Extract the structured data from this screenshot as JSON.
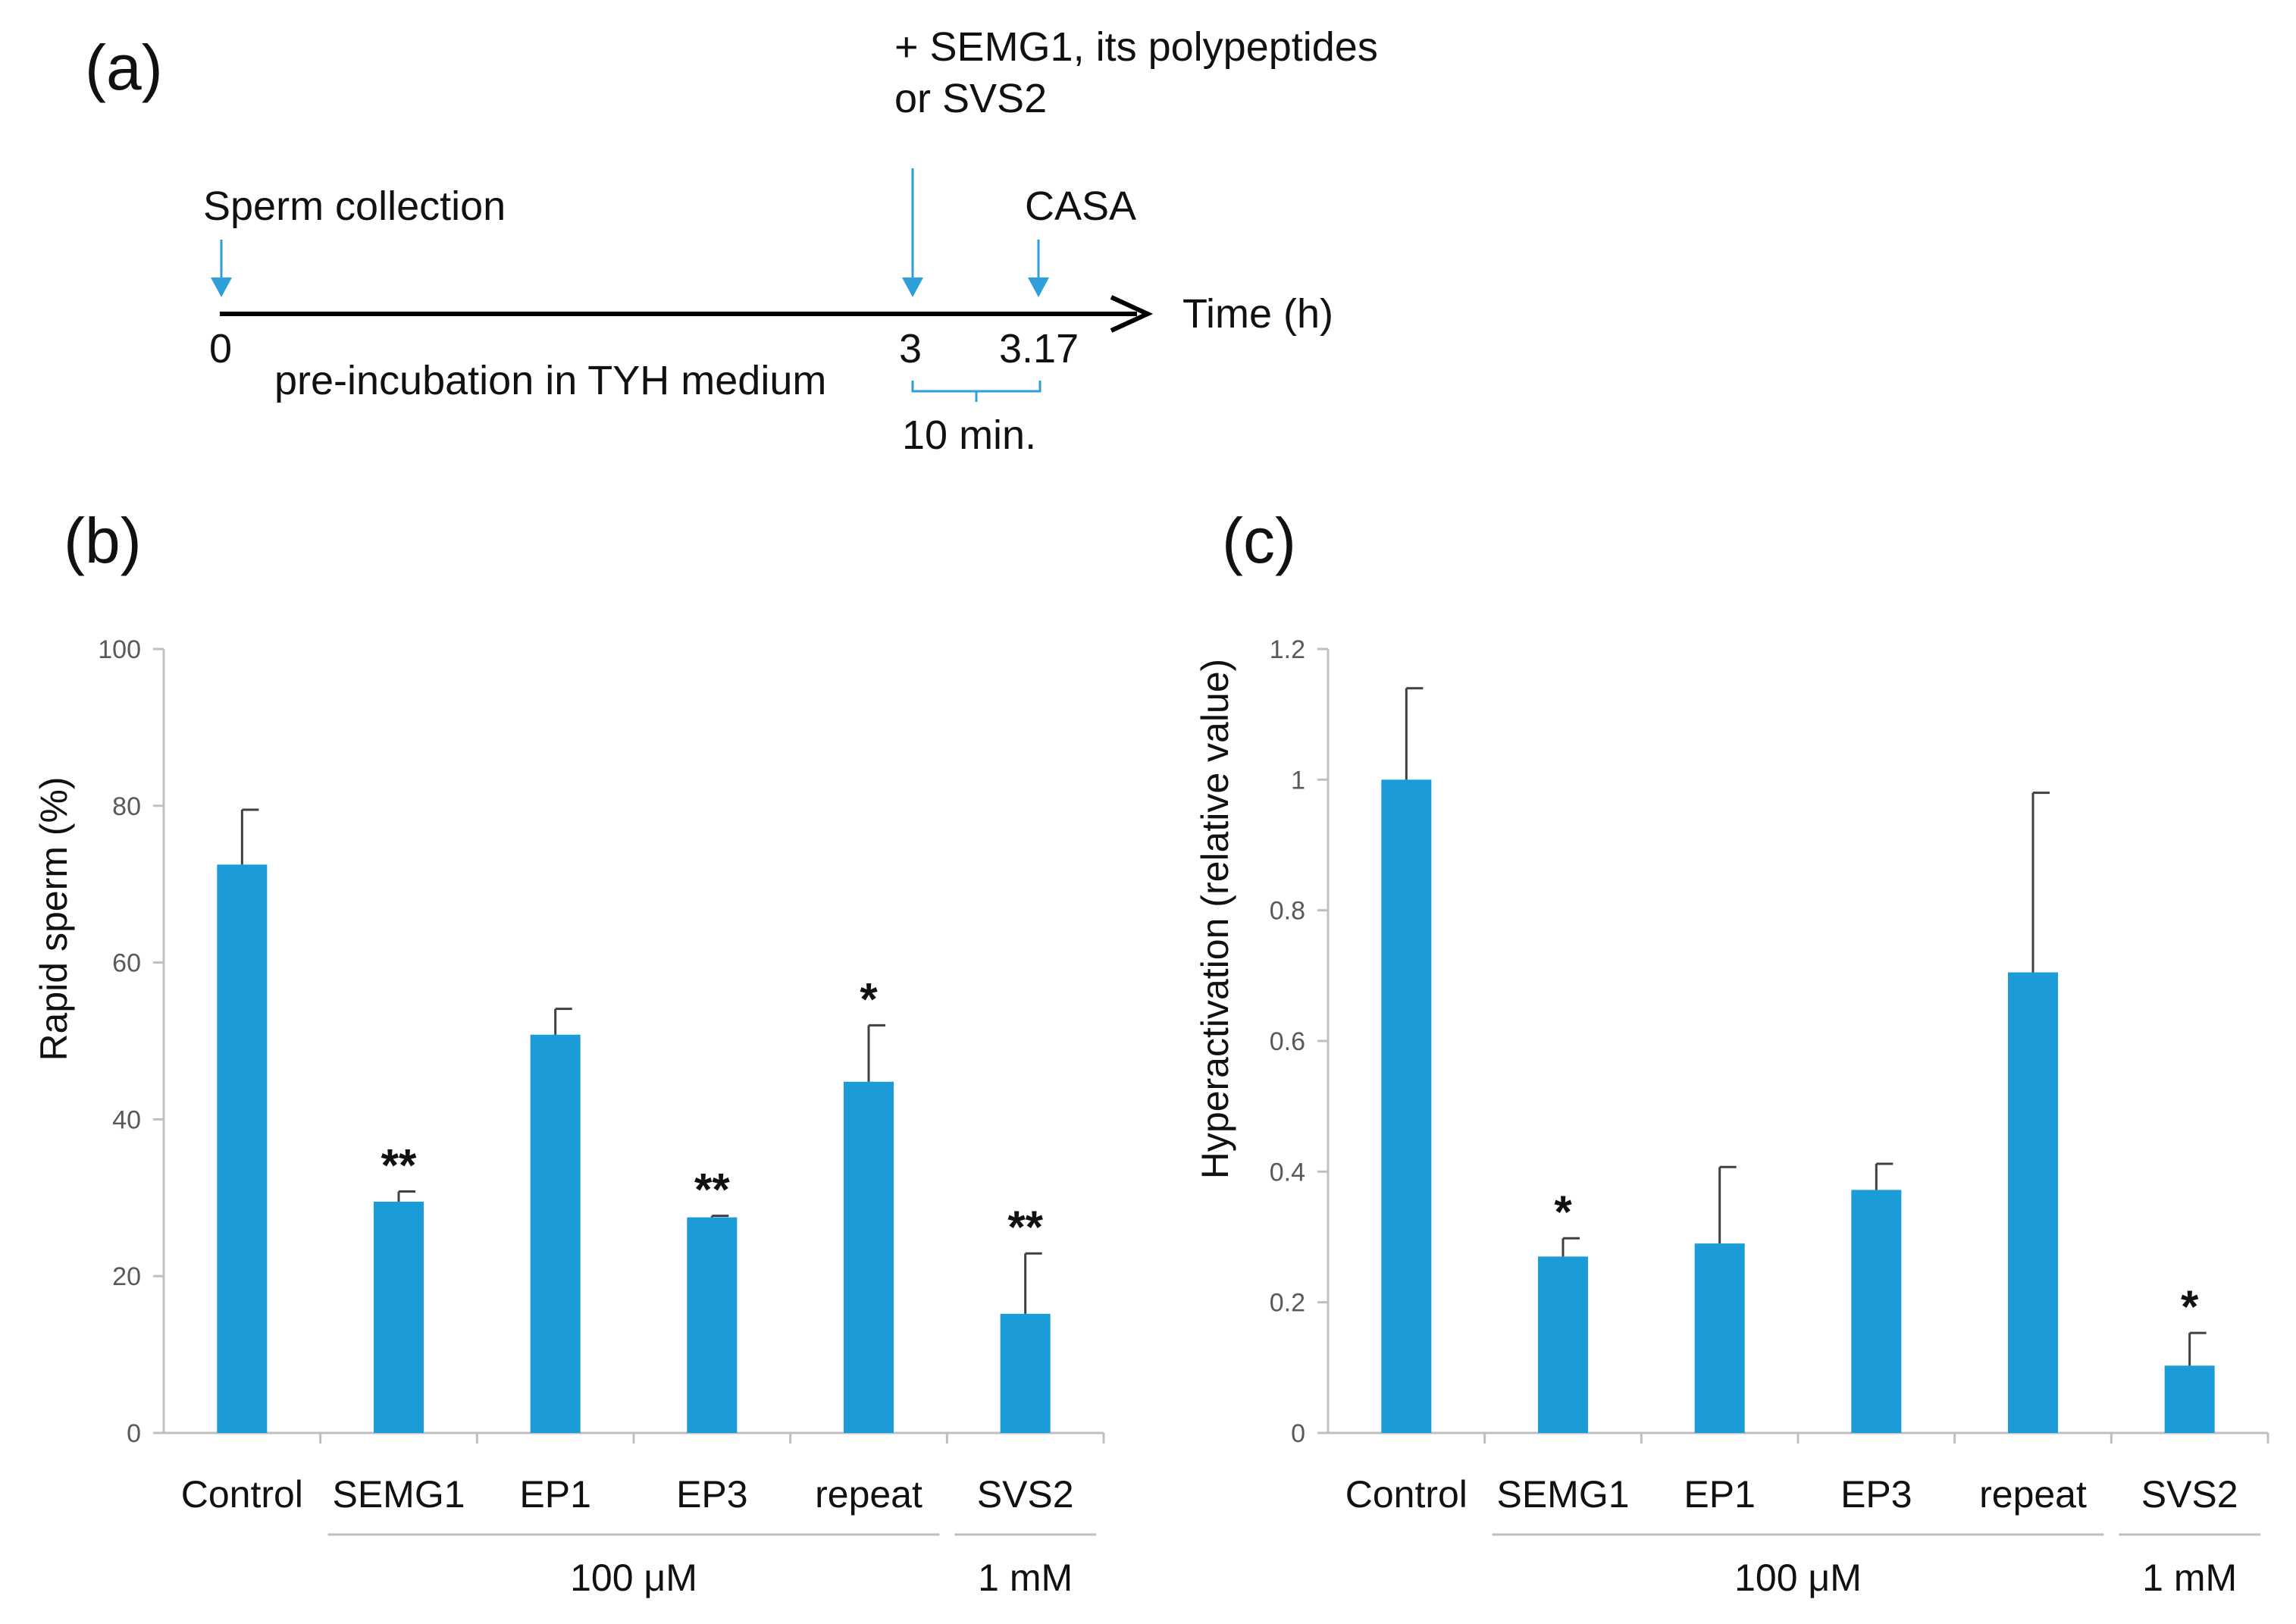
{
  "colors": {
    "bar": "#1b9cd9",
    "arrow": "#2e9fd8",
    "axis": "#bfbfbf",
    "error": "#404040"
  },
  "panel_a": {
    "label": "(a)",
    "addition_line1": "+ SEMG1, its polypeptides",
    "addition_line2": "or SVS2",
    "sperm_collection": "Sperm collection",
    "casa": "CASA",
    "time_label": "Time (h)",
    "t0": "0",
    "t3": "3",
    "t317": "3.17",
    "preincubation": "pre-incubation in TYH  medium",
    "interval": "10 min."
  },
  "chart_data": [
    {
      "type": "bar",
      "panel_label": "(b)",
      "ylabel": "Rapid sperm (%)",
      "ylim": [
        0,
        100
      ],
      "yticks": [
        "0",
        "20",
        "40",
        "60",
        "80",
        "100"
      ],
      "categories": [
        "Control",
        "SEMG1",
        "EP1",
        "EP3",
        "repeat",
        "SVS2"
      ],
      "values": [
        72.5,
        29.5,
        50.8,
        27.5,
        44.8,
        15.2
      ],
      "errors": [
        7.0,
        1.3,
        3.3,
        0.2,
        7.2,
        7.7
      ],
      "significance": [
        "",
        "**",
        "",
        "**",
        "*",
        "**"
      ],
      "groups": [
        {
          "label": "100 μM",
          "categories": [
            "SEMG1",
            "EP1",
            "EP3",
            "repeat"
          ]
        },
        {
          "label": "1 mM",
          "categories": [
            "SVS2"
          ]
        }
      ]
    },
    {
      "type": "bar",
      "panel_label": "(c)",
      "ylabel": "Hyperactivation (relative value)",
      "ylim": [
        0,
        1.2
      ],
      "yticks": [
        "0",
        "0.2",
        "0.4",
        "0.6",
        "0.8",
        "1",
        "1.2"
      ],
      "categories": [
        "Control",
        "SEMG1",
        "EP1",
        "EP3",
        "repeat",
        "SVS2"
      ],
      "values": [
        1.0,
        0.27,
        0.29,
        0.372,
        0.705,
        0.103
      ],
      "errors": [
        0.14,
        0.028,
        0.117,
        0.04,
        0.275,
        0.05
      ],
      "significance": [
        "",
        "*",
        "",
        "",
        "",
        "*"
      ],
      "groups": [
        {
          "label": "100 μM",
          "categories": [
            "SEMG1",
            "EP1",
            "EP3",
            "repeat"
          ]
        },
        {
          "label": "1 mM",
          "categories": [
            "SVS2"
          ]
        }
      ]
    }
  ]
}
